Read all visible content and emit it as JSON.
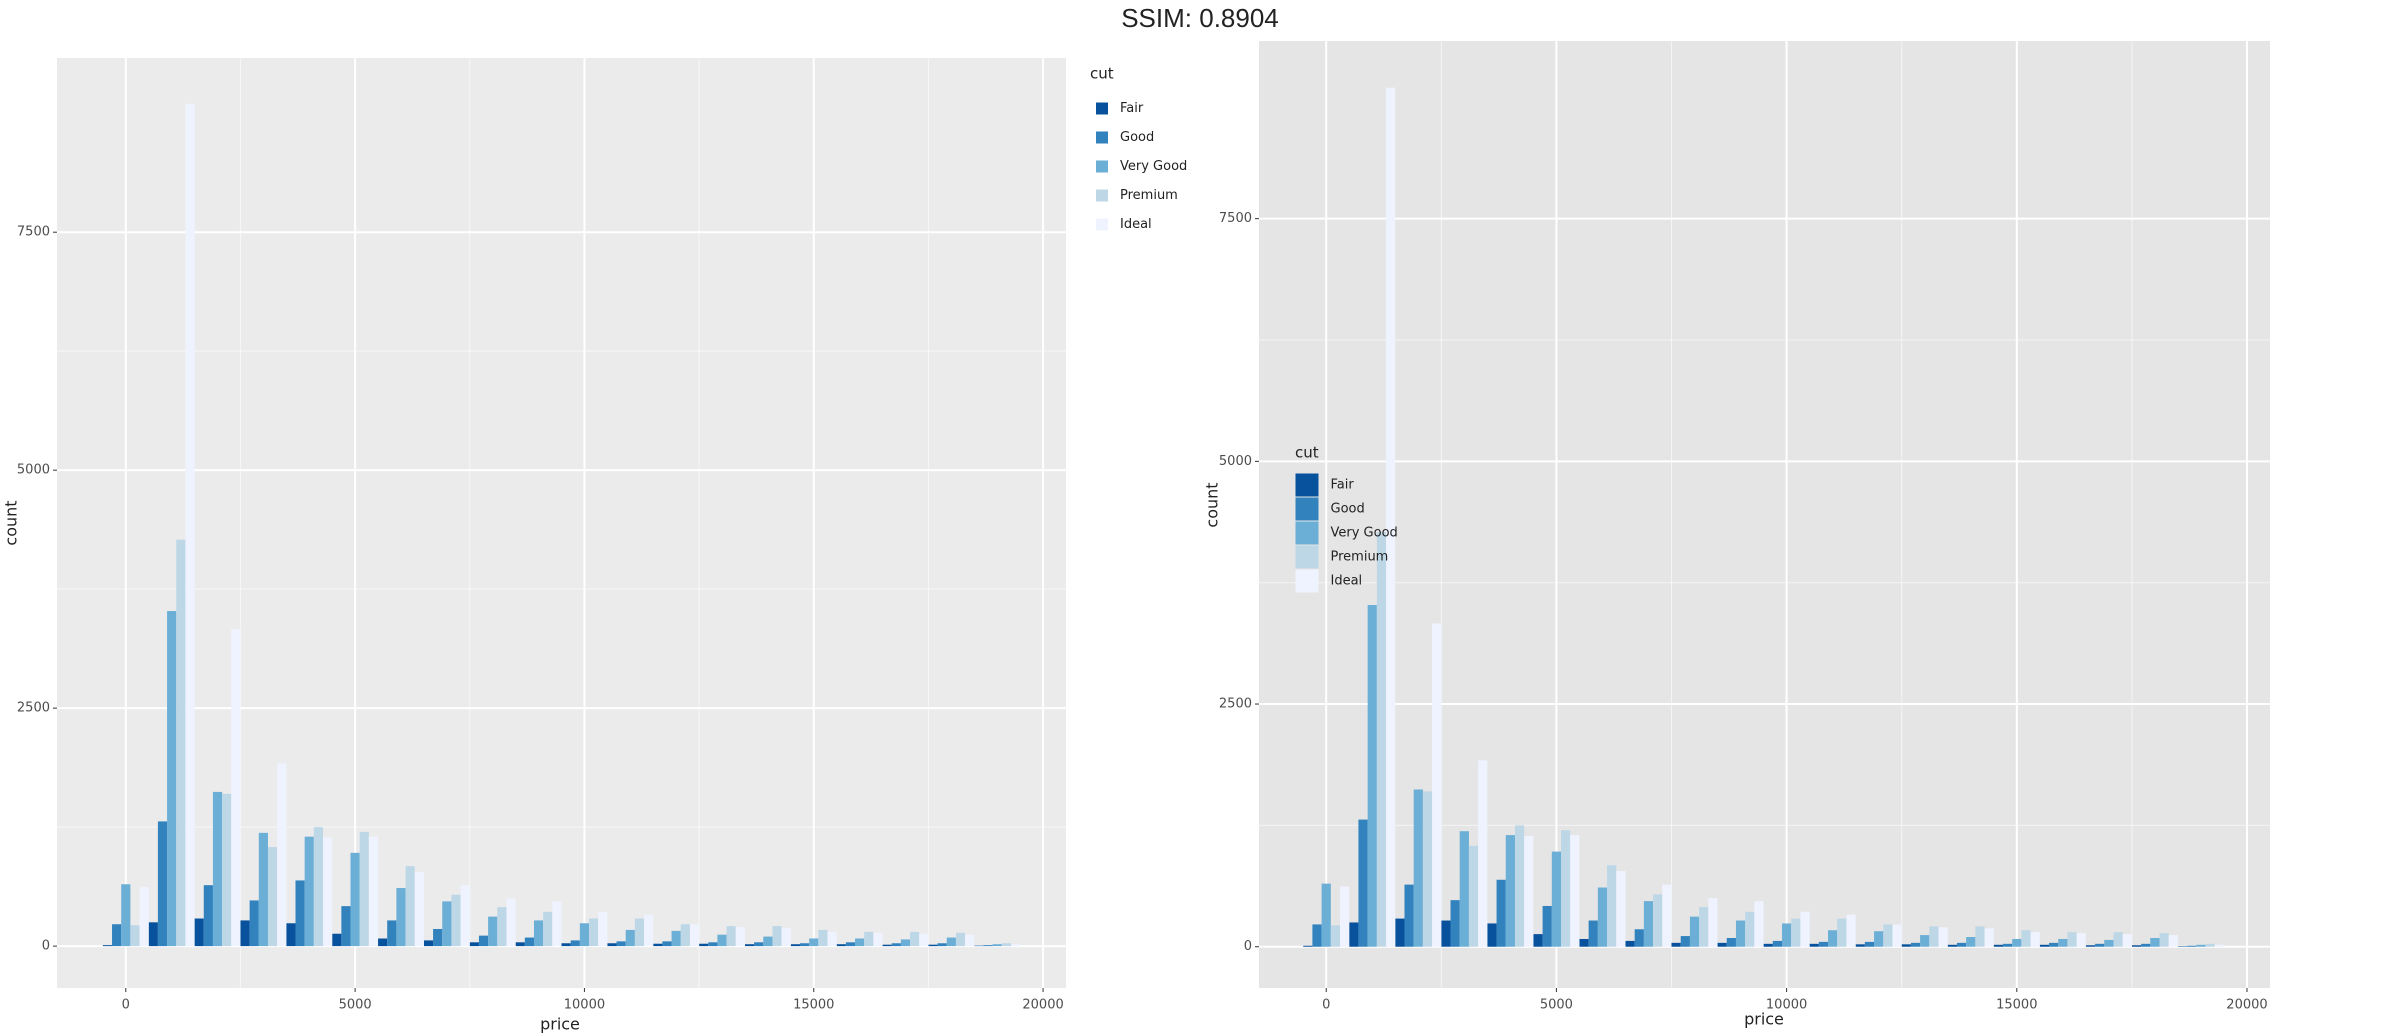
{
  "header": "SSIM: 0.8904",
  "chart_data": [
    {
      "type": "histogram",
      "x_label": "price",
      "y_label": "count",
      "legend_title": "cut",
      "legend": "right-top",
      "panel_color": "#ebebeb",
      "grid": true,
      "bins": [
        -500,
        500,
        1500,
        2500,
        3500,
        4500,
        5500,
        6500,
        7500,
        8500,
        9500,
        10500,
        11500,
        12500,
        13500,
        14500,
        15500,
        16500,
        17500,
        18500,
        19500
      ],
      "xlim": [
        -1500,
        20500
      ],
      "xticks": [
        0,
        5000,
        10000,
        15000,
        20000
      ],
      "ylim": [
        -440,
        9330
      ],
      "yticks": [
        0,
        2500,
        5000,
        7500
      ],
      "series": [
        {
          "name": "Fair",
          "color": "#08519c",
          "values": [
            10,
            250,
            290,
            270,
            240,
            130,
            80,
            60,
            40,
            40,
            30,
            30,
            25,
            25,
            20,
            20,
            20,
            15,
            15,
            5
          ]
        },
        {
          "name": "Good",
          "color": "#3182bd",
          "values": [
            230,
            1310,
            640,
            480,
            690,
            420,
            270,
            180,
            110,
            90,
            60,
            50,
            50,
            40,
            40,
            30,
            40,
            30,
            30,
            10
          ]
        },
        {
          "name": "Very Good",
          "color": "#6baed6",
          "values": [
            650,
            3520,
            1620,
            1190,
            1150,
            980,
            610,
            470,
            310,
            270,
            240,
            170,
            160,
            120,
            100,
            80,
            80,
            70,
            90,
            20
          ]
        },
        {
          "name": "Premium",
          "color": "#bdd7e7",
          "values": [
            220,
            4270,
            1600,
            1040,
            1250,
            1200,
            840,
            540,
            410,
            360,
            290,
            290,
            230,
            210,
            210,
            170,
            150,
            150,
            140,
            30
          ]
        },
        {
          "name": "Ideal",
          "color": "#eff3ff",
          "values": [
            620,
            8850,
            3330,
            1920,
            1140,
            1150,
            780,
            640,
            500,
            470,
            360,
            330,
            230,
            200,
            190,
            150,
            140,
            130,
            120,
            20
          ]
        }
      ]
    },
    {
      "type": "histogram",
      "x_label": "price",
      "y_label": "count",
      "legend_title": "cut",
      "legend": "right-center",
      "panel_color": "#e5e5e5",
      "grid": true,
      "bins": [
        -500,
        500,
        1500,
        2500,
        3500,
        4500,
        5500,
        6500,
        7500,
        8500,
        9500,
        10500,
        11500,
        12500,
        13500,
        14500,
        15500,
        16500,
        17500,
        18500,
        19500
      ],
      "xlim": [
        -1460,
        20500
      ],
      "xticks": [
        0,
        5000,
        10000,
        15000,
        20000
      ],
      "ylim": [
        -425,
        9330
      ],
      "yticks": [
        0,
        2500,
        5000,
        7500
      ],
      "series": [
        {
          "name": "Fair",
          "color": "#08519c",
          "values": [
            10,
            250,
            290,
            270,
            240,
            130,
            80,
            60,
            40,
            40,
            30,
            30,
            25,
            25,
            20,
            20,
            20,
            15,
            15,
            5
          ]
        },
        {
          "name": "Good",
          "color": "#3182bd",
          "values": [
            230,
            1310,
            640,
            480,
            690,
            420,
            270,
            180,
            110,
            90,
            60,
            50,
            50,
            40,
            40,
            30,
            40,
            30,
            30,
            10
          ]
        },
        {
          "name": "Very Good",
          "color": "#6baed6",
          "values": [
            650,
            3520,
            1620,
            1190,
            1150,
            980,
            610,
            470,
            310,
            270,
            240,
            170,
            160,
            120,
            100,
            80,
            80,
            70,
            90,
            20
          ]
        },
        {
          "name": "Premium",
          "color": "#bdd7e7",
          "values": [
            220,
            4270,
            1600,
            1040,
            1250,
            1200,
            840,
            540,
            410,
            360,
            290,
            290,
            230,
            210,
            210,
            170,
            150,
            150,
            140,
            30
          ]
        },
        {
          "name": "Ideal",
          "color": "#eff3ff",
          "values": [
            620,
            8850,
            3330,
            1920,
            1140,
            1150,
            780,
            640,
            500,
            470,
            360,
            330,
            230,
            200,
            190,
            150,
            140,
            130,
            120,
            20
          ]
        }
      ]
    }
  ]
}
